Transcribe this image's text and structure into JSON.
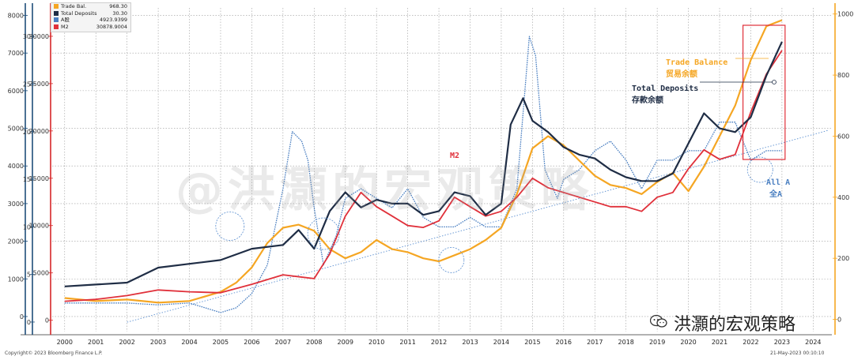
{
  "chart_data": {
    "type": "line",
    "title": "",
    "x_range": [
      1999.6,
      2024.6
    ],
    "x_ticks": [
      "2000",
      "2001",
      "2002",
      "2003",
      "2004",
      "2005",
      "2006",
      "2007",
      "2008",
      "2009",
      "2010",
      "2011",
      "2012",
      "2013",
      "2014",
      "2015",
      "2016",
      "2017",
      "2018",
      "2019",
      "2020",
      "2021",
      "2022",
      "2023",
      "2024"
    ],
    "axes": [
      {
        "name": "deposits_axis",
        "color": "#1f4e79",
        "range": [
          -400,
          8200
        ],
        "ticks": [
          0,
          1000,
          2000,
          3000,
          4000,
          5000,
          6000,
          7000,
          8000
        ]
      },
      {
        "name": "a_share_axis",
        "color": "#1f4e79",
        "range": [
          -1,
          33
        ],
        "ticks": [
          0,
          5,
          10,
          15,
          20,
          25,
          30
        ]
      },
      {
        "name": "m2_axis",
        "color": "#d62728",
        "range": [
          -1200,
          33000
        ],
        "ticks": [
          0,
          5000,
          10000,
          15000,
          20000,
          25000,
          30000
        ]
      },
      {
        "name": "trade_axis",
        "color": "#f5a623",
        "range": [
          -40,
          1020
        ],
        "ticks": [
          0,
          200,
          400,
          600,
          800,
          1000
        ]
      }
    ],
    "series": [
      {
        "name": "Trade Balance",
        "color": "#f5a623",
        "axis": "trade_axis",
        "x": [
          2000,
          2001,
          2002,
          2003,
          2004,
          2005,
          2005.5,
          2006,
          2006.5,
          2007,
          2007.5,
          2008,
          2008.5,
          2009,
          2009.5,
          2010,
          2010.5,
          2011,
          2011.5,
          2012,
          2012.5,
          2013,
          2013.5,
          2014,
          2014.5,
          2015,
          2015.5,
          2016,
          2016.5,
          2017,
          2017.5,
          2018,
          2018.5,
          2019,
          2019.5,
          2020,
          2020.5,
          2021,
          2021.5,
          2022,
          2022.5,
          2023
        ],
        "values": [
          70,
          60,
          65,
          55,
          60,
          90,
          120,
          170,
          250,
          300,
          310,
          290,
          230,
          200,
          220,
          260,
          230,
          220,
          200,
          190,
          210,
          230,
          260,
          300,
          410,
          560,
          600,
          570,
          520,
          470,
          440,
          430,
          410,
          450,
          480,
          420,
          500,
          600,
          700,
          850,
          960,
          980
        ]
      },
      {
        "name": "Total Deposits",
        "color": "#1f2d45",
        "axis": "deposits_axis",
        "x": [
          2000,
          2001,
          2002,
          2003,
          2004,
          2005,
          2006,
          2007,
          2007.5,
          2008,
          2008.5,
          2009,
          2009.5,
          2010,
          2010.5,
          2011,
          2011.5,
          2012,
          2012.5,
          2013,
          2013.5,
          2014,
          2014.3,
          2014.7,
          2015,
          2015.5,
          2016,
          2016.5,
          2017,
          2017.5,
          2018,
          2018.5,
          2019,
          2019.5,
          2020,
          2020.5,
          2021,
          2021.5,
          2022,
          2022.5,
          2023
        ],
        "values": [
          800,
          850,
          900,
          1300,
          1400,
          1500,
          1800,
          1900,
          2300,
          1800,
          2800,
          3300,
          2900,
          3100,
          3000,
          3000,
          2700,
          2800,
          3300,
          3200,
          2700,
          3000,
          5100,
          5800,
          5200,
          4900,
          4500,
          4300,
          4200,
          3900,
          3700,
          3600,
          3600,
          3800,
          4600,
          5400,
          5000,
          4900,
          5300,
          6400,
          7300
        ]
      },
      {
        "name": "A股",
        "color": "#4a7fc1",
        "axis": "a_share_axis",
        "x": [
          2000,
          2001,
          2002,
          2003,
          2004,
          2005,
          2005.5,
          2006,
          2006.5,
          2007,
          2007.3,
          2007.6,
          2007.8,
          2008,
          2008.3,
          2008.7,
          2009,
          2009.5,
          2010,
          2010.5,
          2011,
          2011.5,
          2012,
          2012.5,
          2013,
          2013.5,
          2014,
          2014.5,
          2014.9,
          2015.1,
          2015.4,
          2015.8,
          2016,
          2016.5,
          2017,
          2017.5,
          2018,
          2018.5,
          2019,
          2019.5,
          2020,
          2020.5,
          2021,
          2021.5,
          2022,
          2022.5,
          2023
        ],
        "values": [
          2,
          2,
          2,
          1.8,
          2,
          1,
          1.5,
          3,
          6,
          14,
          20,
          19,
          17,
          12,
          6,
          9,
          13,
          14,
          13,
          12,
          14,
          11,
          10,
          10,
          11,
          10,
          10,
          14,
          30,
          28,
          16,
          13,
          15,
          16,
          18,
          19,
          17,
          14,
          17,
          17,
          18,
          18,
          21,
          21,
          17,
          18,
          18
        ]
      },
      {
        "name": "M2",
        "color": "#e0303a",
        "axis": "m2_axis",
        "x": [
          2000,
          2001,
          2002,
          2003,
          2004,
          2005,
          2006,
          2007,
          2008,
          2008.5,
          2009,
          2009.5,
          2010,
          2010.5,
          2011,
          2011.5,
          2012,
          2012.5,
          2013,
          2013.5,
          2014,
          2014.5,
          2015,
          2015.5,
          2016,
          2016.5,
          2017,
          2017.5,
          2018,
          2018.5,
          2019,
          2019.5,
          2020,
          2020.5,
          2021,
          2021.5,
          2022,
          2022.5,
          2023
        ],
        "values": [
          2000,
          2200,
          2600,
          3200,
          3000,
          2900,
          3800,
          4800,
          4400,
          7000,
          11000,
          13500,
          12000,
          11000,
          10000,
          9800,
          10500,
          13000,
          12000,
          11000,
          11500,
          13000,
          15000,
          14000,
          13500,
          13000,
          12500,
          12000,
          12000,
          11500,
          13000,
          13500,
          16000,
          18000,
          17000,
          17500,
          22000,
          26000,
          28500
        ]
      },
      {
        "name": "trend",
        "color": "#5b8fd0",
        "axis": "deposits_axis",
        "x": [
          2002,
          2024.5
        ],
        "values": [
          -150,
          4950
        ]
      }
    ],
    "legend": {
      "placement": "top-left",
      "entries": [
        {
          "label": "Trade Bal.",
          "value": "968.30",
          "color": "#f5a623"
        },
        {
          "label": "Total Deposits",
          "value": "30.30",
          "color": "#1f2d45"
        },
        {
          "label": "A股",
          "value": "4923.9399",
          "color": "#4a7fc1"
        },
        {
          "label": "M2",
          "value": "30878.9004",
          "color": "#e0303a"
        }
      ]
    },
    "annotations": {
      "trade_en": "Trade Balance",
      "trade_cn": "贸易余额",
      "deposits_en": "Total Deposits",
      "deposits_cn": "存款余额",
      "m2": "M2",
      "a_en": "All A",
      "a_cn": "全A"
    }
  },
  "footer": {
    "copyright": "Copyright© 2023 Bloomberg Finance L.P.",
    "timestamp": "21-May-2023 00:10:10"
  },
  "watermark": "@洪灝的宏观策略",
  "brand": "洪灝的宏观策略"
}
